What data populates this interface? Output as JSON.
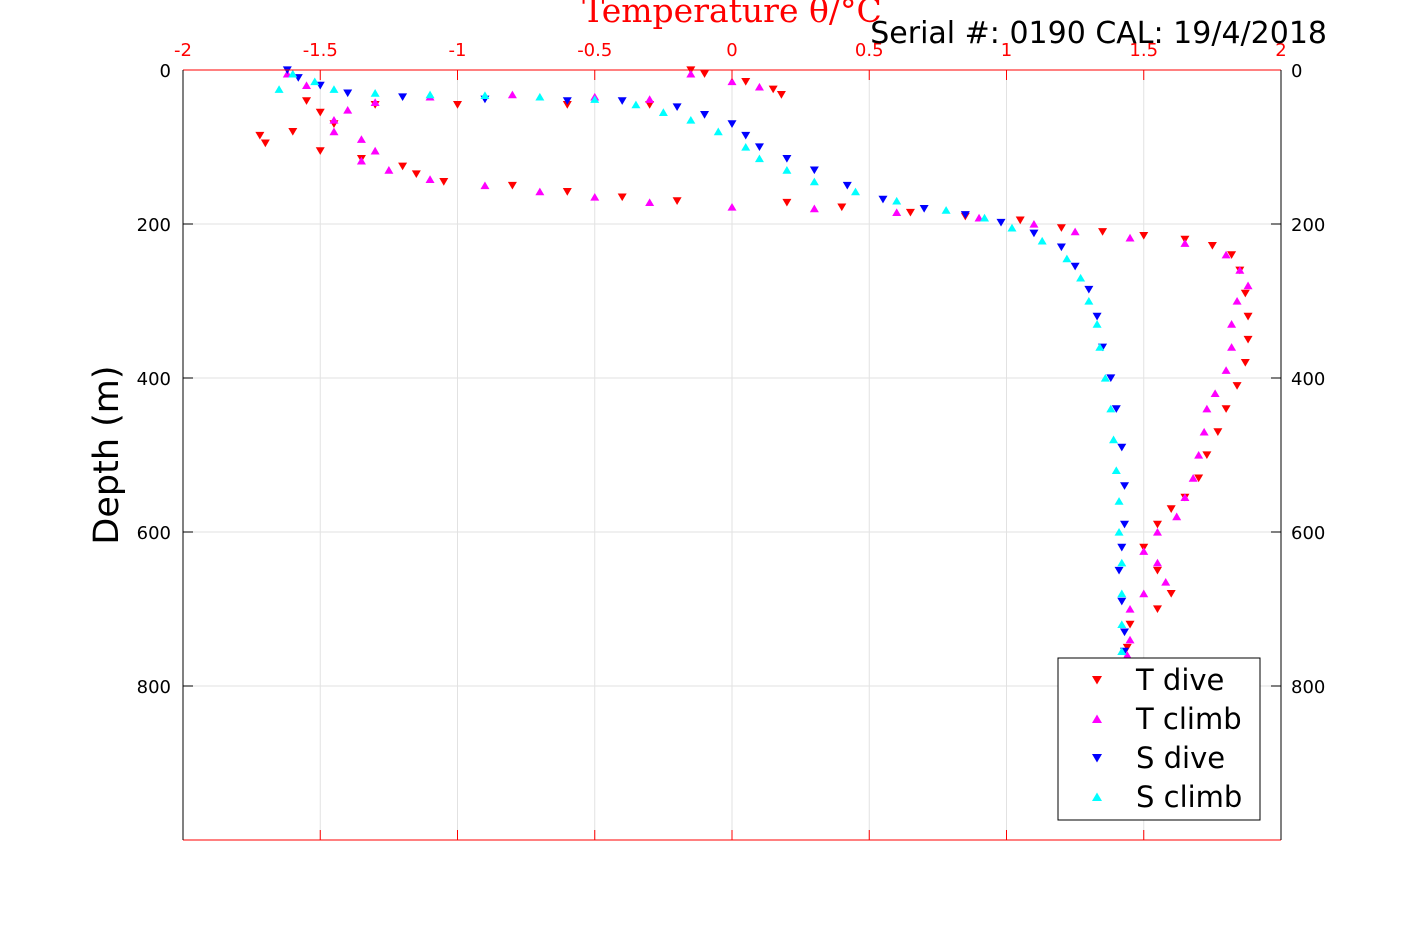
{
  "serial_label": "Serial #: 0190  CAL: 19/4/2018",
  "colors": {
    "axis_top": "#ff0000",
    "axis_left": "#000000",
    "grid": "#e2e2e2",
    "t_dive": "#ff0000",
    "t_climb": "#ff00ff",
    "s_dive": "#0000ff",
    "s_climb": "#00ffff"
  },
  "chart_data": {
    "type": "scatter",
    "title": "Temperature θ/°C",
    "ylabel": "Depth (m)",
    "xlim": [
      -2,
      2
    ],
    "ylim": [
      1000,
      0
    ],
    "y_reversed": true,
    "grid": true,
    "legend_position": "bottom-right",
    "x_ticks": [
      "-2",
      "-1.5",
      "-1",
      "-0.5",
      "0",
      "0.5",
      "1",
      "1.5",
      "2"
    ],
    "y_ticks_left": [
      "0",
      "200",
      "400",
      "600",
      "800"
    ],
    "y_ticks_right": [
      "0",
      "200",
      "400",
      "600",
      "800"
    ],
    "series": [
      {
        "name": "T dive",
        "marker": "triangle-down",
        "points": [
          [
            -0.15,
            0
          ],
          [
            -0.1,
            5
          ],
          [
            0.05,
            15
          ],
          [
            0.15,
            25
          ],
          [
            0.18,
            32
          ],
          [
            -1.55,
            40
          ],
          [
            -1.3,
            45
          ],
          [
            -1.0,
            45
          ],
          [
            -0.6,
            45
          ],
          [
            -0.3,
            45
          ],
          [
            -1.5,
            55
          ],
          [
            -1.45,
            70
          ],
          [
            -1.6,
            80
          ],
          [
            -1.72,
            85
          ],
          [
            -1.7,
            95
          ],
          [
            -1.5,
            105
          ],
          [
            -1.35,
            115
          ],
          [
            -1.2,
            125
          ],
          [
            -1.15,
            135
          ],
          [
            -1.05,
            145
          ],
          [
            -0.8,
            150
          ],
          [
            -0.6,
            158
          ],
          [
            -0.4,
            165
          ],
          [
            -0.2,
            170
          ],
          [
            0.2,
            172
          ],
          [
            0.4,
            178
          ],
          [
            0.65,
            185
          ],
          [
            0.85,
            190
          ],
          [
            1.05,
            195
          ],
          [
            1.2,
            205
          ],
          [
            1.35,
            210
          ],
          [
            1.5,
            215
          ],
          [
            1.65,
            220
          ],
          [
            1.75,
            228
          ],
          [
            1.82,
            240
          ],
          [
            1.85,
            260
          ],
          [
            1.87,
            290
          ],
          [
            1.88,
            320
          ],
          [
            1.88,
            350
          ],
          [
            1.87,
            380
          ],
          [
            1.84,
            410
          ],
          [
            1.8,
            440
          ],
          [
            1.77,
            470
          ],
          [
            1.73,
            500
          ],
          [
            1.7,
            530
          ],
          [
            1.65,
            555
          ],
          [
            1.6,
            570
          ],
          [
            1.55,
            590
          ],
          [
            1.5,
            620
          ],
          [
            1.55,
            650
          ],
          [
            1.6,
            680
          ],
          [
            1.55,
            700
          ],
          [
            1.45,
            720
          ],
          [
            1.44,
            750
          ]
        ]
      },
      {
        "name": "T climb",
        "marker": "triangle-up",
        "points": [
          [
            1.44,
            760
          ],
          [
            1.45,
            740
          ],
          [
            1.45,
            700
          ],
          [
            1.5,
            680
          ],
          [
            1.58,
            665
          ],
          [
            1.55,
            640
          ],
          [
            1.5,
            625
          ],
          [
            1.55,
            600
          ],
          [
            1.62,
            580
          ],
          [
            1.65,
            555
          ],
          [
            1.68,
            530
          ],
          [
            1.7,
            500
          ],
          [
            1.72,
            470
          ],
          [
            1.73,
            440
          ],
          [
            1.76,
            420
          ],
          [
            1.8,
            390
          ],
          [
            1.82,
            360
          ],
          [
            1.82,
            330
          ],
          [
            1.84,
            300
          ],
          [
            1.88,
            280
          ],
          [
            1.85,
            260
          ],
          [
            1.8,
            240
          ],
          [
            1.65,
            225
          ],
          [
            1.45,
            218
          ],
          [
            1.25,
            210
          ],
          [
            1.1,
            200
          ],
          [
            0.9,
            192
          ],
          [
            0.6,
            185
          ],
          [
            0.3,
            180
          ],
          [
            0.0,
            178
          ],
          [
            -0.3,
            172
          ],
          [
            -0.5,
            165
          ],
          [
            -0.7,
            158
          ],
          [
            -0.9,
            150
          ],
          [
            -1.1,
            142
          ],
          [
            -1.25,
            130
          ],
          [
            -1.35,
            118
          ],
          [
            -1.3,
            105
          ],
          [
            -1.35,
            90
          ],
          [
            -1.45,
            80
          ],
          [
            -1.45,
            65
          ],
          [
            -1.4,
            52
          ],
          [
            -1.3,
            42
          ],
          [
            -1.1,
            35
          ],
          [
            -0.8,
            32
          ],
          [
            -0.5,
            35
          ],
          [
            -0.3,
            38
          ],
          [
            -1.55,
            20
          ],
          [
            -1.62,
            5
          ],
          [
            -0.15,
            5
          ],
          [
            0.0,
            15
          ],
          [
            0.1,
            22
          ]
        ]
      },
      {
        "name": "S dive",
        "marker": "triangle-down",
        "points": [
          [
            -1.62,
            0
          ],
          [
            -1.58,
            10
          ],
          [
            -1.5,
            20
          ],
          [
            -1.4,
            30
          ],
          [
            -1.2,
            35
          ],
          [
            -0.9,
            38
          ],
          [
            -0.6,
            40
          ],
          [
            -0.4,
            40
          ],
          [
            -0.2,
            48
          ],
          [
            -0.1,
            58
          ],
          [
            0.0,
            70
          ],
          [
            0.05,
            85
          ],
          [
            0.1,
            100
          ],
          [
            0.2,
            115
          ],
          [
            0.3,
            130
          ],
          [
            0.42,
            150
          ],
          [
            0.55,
            168
          ],
          [
            0.7,
            180
          ],
          [
            0.85,
            188
          ],
          [
            0.98,
            198
          ],
          [
            1.1,
            212
          ],
          [
            1.2,
            230
          ],
          [
            1.25,
            255
          ],
          [
            1.3,
            285
          ],
          [
            1.33,
            320
          ],
          [
            1.35,
            360
          ],
          [
            1.38,
            400
          ],
          [
            1.4,
            440
          ],
          [
            1.42,
            490
          ],
          [
            1.43,
            540
          ],
          [
            1.43,
            590
          ],
          [
            1.42,
            620
          ],
          [
            1.41,
            650
          ],
          [
            1.42,
            690
          ],
          [
            1.43,
            730
          ],
          [
            1.43,
            755
          ]
        ]
      },
      {
        "name": "S climb",
        "marker": "triangle-up",
        "points": [
          [
            1.42,
            755
          ],
          [
            1.42,
            720
          ],
          [
            1.42,
            680
          ],
          [
            1.42,
            640
          ],
          [
            1.41,
            600
          ],
          [
            1.41,
            560
          ],
          [
            1.4,
            520
          ],
          [
            1.39,
            480
          ],
          [
            1.38,
            440
          ],
          [
            1.36,
            400
          ],
          [
            1.34,
            360
          ],
          [
            1.33,
            330
          ],
          [
            1.3,
            300
          ],
          [
            1.27,
            270
          ],
          [
            1.22,
            245
          ],
          [
            1.13,
            222
          ],
          [
            1.02,
            205
          ],
          [
            0.92,
            192
          ],
          [
            0.78,
            182
          ],
          [
            0.6,
            170
          ],
          [
            0.45,
            158
          ],
          [
            0.3,
            145
          ],
          [
            0.2,
            130
          ],
          [
            0.1,
            115
          ],
          [
            0.05,
            100
          ],
          [
            -0.05,
            80
          ],
          [
            -0.15,
            65
          ],
          [
            -0.25,
            55
          ],
          [
            -0.35,
            45
          ],
          [
            -0.5,
            38
          ],
          [
            -0.7,
            35
          ],
          [
            -0.9,
            33
          ],
          [
            -1.1,
            32
          ],
          [
            -1.3,
            30
          ],
          [
            -1.45,
            25
          ],
          [
            -1.52,
            15
          ],
          [
            -1.6,
            5
          ],
          [
            -1.65,
            25
          ]
        ]
      }
    ]
  }
}
